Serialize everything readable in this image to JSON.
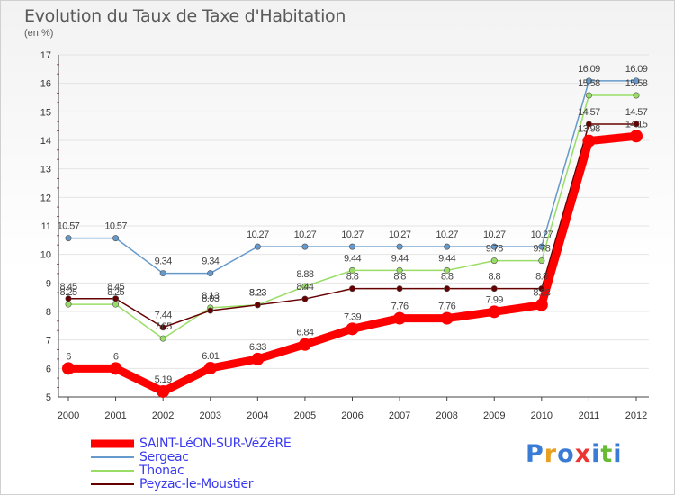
{
  "chart_data": {
    "type": "line",
    "title": "Evolution du Taux de Taxe d'Habitation",
    "subtitle": "(en %)",
    "x": [
      "2000",
      "2001",
      "2002",
      "2003",
      "2004",
      "2005",
      "2006",
      "2007",
      "2008",
      "2009",
      "2010",
      "2011",
      "2012"
    ],
    "ylim": [
      5,
      17
    ],
    "yticks": [
      "5",
      "6",
      "7",
      "8",
      "9",
      "10",
      "11",
      "12",
      "13",
      "14",
      "15",
      "16",
      "17"
    ],
    "series": [
      {
        "name": "SAINT-LéON-SUR-VéZèRE",
        "color": "#ff0000",
        "values": [
          6,
          6,
          5.19,
          6.01,
          6.33,
          6.84,
          7.39,
          7.76,
          7.76,
          7.99,
          8.23,
          13.98,
          14.15
        ],
        "labels": [
          "6",
          "6",
          "5.19",
          "6.01",
          "6.33",
          "6.84",
          "7.39",
          "7.76",
          "7.76",
          "7.99",
          "8.23",
          "13.98",
          "14.15"
        ]
      },
      {
        "name": "Sergeac",
        "color": "#6699cc",
        "values": [
          10.57,
          10.57,
          9.34,
          9.34,
          10.27,
          10.27,
          10.27,
          10.27,
          10.27,
          10.27,
          10.27,
          16.09,
          16.09
        ],
        "labels": [
          "10.57",
          "10.57",
          "9.34",
          "9.34",
          "10.27",
          "10.27",
          "10.27",
          "10.27",
          "10.27",
          "10.27",
          "10.27",
          "16.09",
          "16.09"
        ]
      },
      {
        "name": "Thonac",
        "color": "#99dd66",
        "values": [
          8.25,
          8.25,
          7.05,
          8.13,
          8.23,
          8.88,
          9.44,
          9.44,
          9.44,
          9.78,
          9.78,
          15.58,
          15.58
        ],
        "labels": [
          "8.25",
          "8.25",
          "7.05",
          "8.13",
          "8.23",
          "8.88",
          "9.44",
          "9.44",
          "9.44",
          "9.78",
          "9.78",
          "15.58",
          "15.58"
        ]
      },
      {
        "name": "Peyzac-le-Moustier",
        "color": "#660000",
        "values": [
          8.45,
          8.45,
          7.44,
          8.03,
          8.23,
          8.44,
          8.8,
          8.8,
          8.8,
          8.8,
          8.8,
          14.57,
          14.57
        ],
        "labels": [
          "8.45",
          "8.45",
          "7.44",
          "8.03",
          "8.23",
          "8.44",
          "8.8",
          "8.8",
          "8.8",
          "8.8",
          "8.8",
          "14.57",
          "14.57"
        ]
      }
    ],
    "legend_position": "bottom-left"
  },
  "logo": {
    "letters": [
      "P",
      "r",
      "o",
      "x",
      "i",
      "t",
      "i"
    ],
    "colors": [
      "#3a7bd5",
      "#e8a020",
      "#3a7bd5",
      "#ee3333",
      "#3a7bd5",
      "#66bb33",
      "#3a7bd5"
    ]
  }
}
